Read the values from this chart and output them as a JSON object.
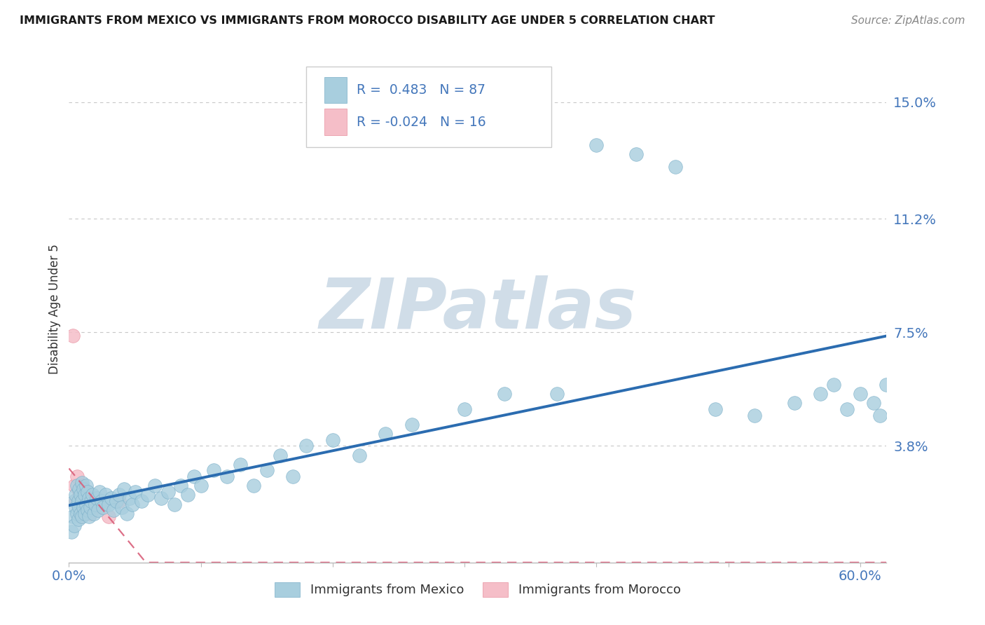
{
  "title": "IMMIGRANTS FROM MEXICO VS IMMIGRANTS FROM MOROCCO DISABILITY AGE UNDER 5 CORRELATION CHART",
  "source": "Source: ZipAtlas.com",
  "ylabel": "Disability Age Under 5",
  "xlim": [
    0.0,
    0.62
  ],
  "ylim": [
    0.0,
    0.165
  ],
  "ytick_positions": [
    0.0,
    0.038,
    0.075,
    0.112,
    0.15
  ],
  "ytick_labels": [
    "",
    "3.8%",
    "7.5%",
    "11.2%",
    "15.0%"
  ],
  "xtick_positions": [
    0.0,
    0.1,
    0.2,
    0.3,
    0.4,
    0.5,
    0.6
  ],
  "mexico_R": 0.483,
  "mexico_N": 87,
  "morocco_R": -0.024,
  "morocco_N": 16,
  "mexico_color": "#A8CEDE",
  "mexico_edge_color": "#7AAEC8",
  "mexico_line_color": "#2B6CB0",
  "morocco_color": "#F5BEC8",
  "morocco_edge_color": "#E8909F",
  "morocco_line_color": "#D95F7A",
  "background_color": "#FFFFFF",
  "grid_color": "#C8C8C8",
  "watermark": "ZIPatlas",
  "watermark_color": "#D0DDE8",
  "title_color": "#1A1A1A",
  "source_color": "#888888",
  "tick_color": "#4477BB",
  "ylabel_color": "#333333",
  "legend_border_color": "#CCCCCC",
  "mexico_x": [
    0.002,
    0.003,
    0.004,
    0.004,
    0.005,
    0.005,
    0.006,
    0.006,
    0.007,
    0.007,
    0.008,
    0.008,
    0.009,
    0.009,
    0.01,
    0.01,
    0.01,
    0.011,
    0.011,
    0.012,
    0.012,
    0.013,
    0.013,
    0.014,
    0.014,
    0.015,
    0.015,
    0.016,
    0.017,
    0.018,
    0.019,
    0.02,
    0.021,
    0.022,
    0.023,
    0.025,
    0.026,
    0.028,
    0.03,
    0.032,
    0.034,
    0.036,
    0.038,
    0.04,
    0.042,
    0.044,
    0.046,
    0.048,
    0.05,
    0.055,
    0.06,
    0.065,
    0.07,
    0.075,
    0.08,
    0.085,
    0.09,
    0.095,
    0.1,
    0.11,
    0.12,
    0.13,
    0.14,
    0.15,
    0.16,
    0.17,
    0.18,
    0.2,
    0.22,
    0.24,
    0.26,
    0.3,
    0.33,
    0.37,
    0.4,
    0.43,
    0.46,
    0.49,
    0.52,
    0.55,
    0.57,
    0.58,
    0.59,
    0.6,
    0.61,
    0.615,
    0.62
  ],
  "mexico_y": [
    0.01,
    0.015,
    0.012,
    0.02,
    0.018,
    0.022,
    0.016,
    0.025,
    0.014,
    0.02,
    0.018,
    0.024,
    0.016,
    0.022,
    0.015,
    0.02,
    0.026,
    0.018,
    0.024,
    0.016,
    0.022,
    0.019,
    0.025,
    0.017,
    0.023,
    0.015,
    0.021,
    0.018,
    0.02,
    0.022,
    0.016,
    0.019,
    0.021,
    0.017,
    0.023,
    0.02,
    0.018,
    0.022,
    0.019,
    0.021,
    0.017,
    0.02,
    0.022,
    0.018,
    0.024,
    0.016,
    0.021,
    0.019,
    0.023,
    0.02,
    0.022,
    0.025,
    0.021,
    0.023,
    0.019,
    0.025,
    0.022,
    0.028,
    0.025,
    0.03,
    0.028,
    0.032,
    0.025,
    0.03,
    0.035,
    0.028,
    0.038,
    0.04,
    0.035,
    0.042,
    0.045,
    0.05,
    0.055,
    0.055,
    0.136,
    0.133,
    0.129,
    0.05,
    0.048,
    0.052,
    0.055,
    0.058,
    0.05,
    0.055,
    0.052,
    0.048,
    0.058
  ],
  "morocco_x": [
    0.003,
    0.004,
    0.005,
    0.006,
    0.007,
    0.008,
    0.009,
    0.01,
    0.011,
    0.012,
    0.014,
    0.016,
    0.02,
    0.025,
    0.03,
    0.038
  ],
  "morocco_y": [
    0.074,
    0.025,
    0.02,
    0.028,
    0.018,
    0.022,
    0.015,
    0.025,
    0.02,
    0.018,
    0.022,
    0.016,
    0.02,
    0.018,
    0.015,
    0.02
  ]
}
